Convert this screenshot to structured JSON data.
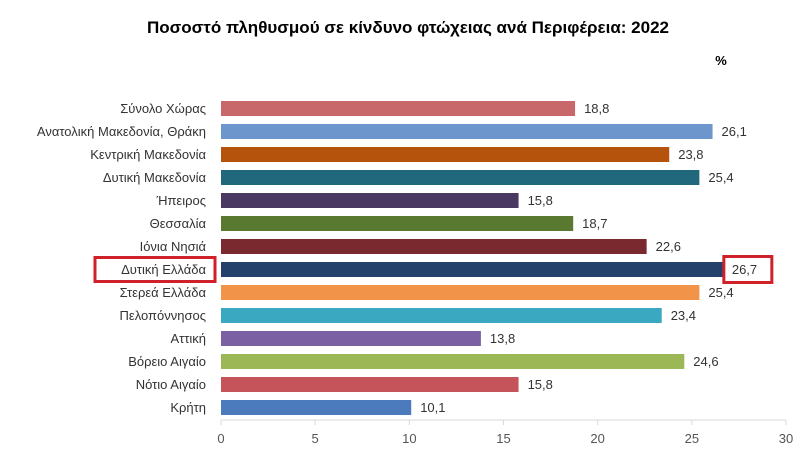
{
  "chart_data": {
    "type": "bar",
    "orientation": "horizontal",
    "title": "Ποσοστό πληθυσμού σε κίνδυνο φτώχειας ανά Περιφέρεια: 2022",
    "unit_label": "%",
    "categories": [
      "Σύνολο Χώρας",
      "Ανατολική Μακεδονία, Θράκη",
      "Κεντρική Μακεδονία",
      "Δυτική Μακεδονία",
      "Ήπειρος",
      "Θεσσαλία",
      "Ιόνια Νησιά",
      "Δυτική Ελλάδα",
      "Στερεά Ελλάδα",
      "Πελοπόννησος",
      "Αττική",
      "Βόρειο Αιγαίο",
      "Νότιο Αιγαίο",
      "Κρήτη"
    ],
    "values": [
      18.8,
      26.1,
      23.8,
      25.4,
      15.8,
      18.7,
      22.6,
      26.7,
      25.4,
      23.4,
      13.8,
      24.6,
      15.8,
      10.1
    ],
    "value_labels": [
      "18,8",
      "26,1",
      "23,8",
      "25,4",
      "15,8",
      "18,7",
      "22,6",
      "26,7",
      "25,4",
      "23,4",
      "13,8",
      "24,6",
      "15,8",
      "10,1"
    ],
    "colors": [
      "#c9686a",
      "#6d96cc",
      "#b5530d",
      "#22687c",
      "#483862",
      "#597931",
      "#7a2a2e",
      "#24416c",
      "#f2934a",
      "#3aa8c1",
      "#7c60a4",
      "#9cb756",
      "#c5545a",
      "#4c7bbd"
    ],
    "xticks": [
      0,
      5,
      10,
      15,
      20,
      25,
      30
    ],
    "xlim": [
      0,
      30
    ],
    "grid": false,
    "highlighted_category": "Δυτική Ελλάδα",
    "highlight_color": "#d0212b"
  }
}
